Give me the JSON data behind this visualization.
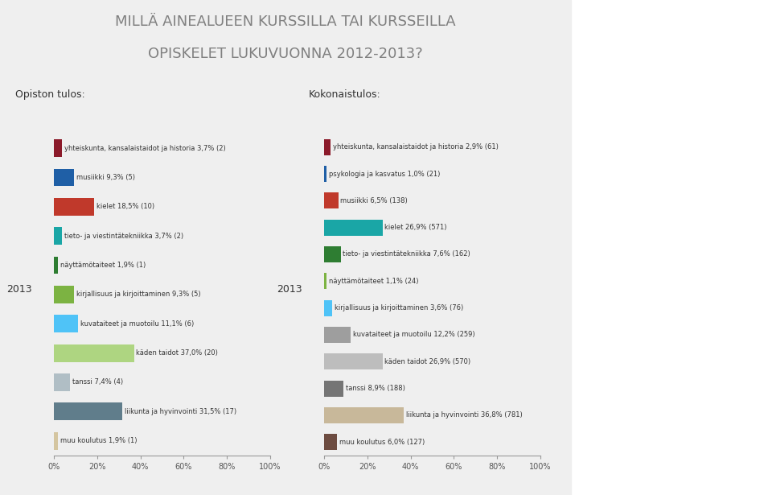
{
  "title_line1": "MILLÄ AINEALUEEN KURSSILLA TAI KURSSEILLA",
  "title_line2": "OPISKELET LUKUVUONNA 2012-2013?",
  "left_subtitle": "Opiston tulos:",
  "right_subtitle": "Kokonaistulos:",
  "year_label": "2013",
  "left_bars": [
    {
      "label": "yhteiskunta, kansalaistaidot ja historia 3,7% (2)",
      "value": 3.7,
      "color": "#8B1A2A"
    },
    {
      "label": "musiikki 9,3% (5)",
      "value": 9.3,
      "color": "#1F5FA6"
    },
    {
      "label": "kielet 18,5% (10)",
      "value": 18.5,
      "color": "#C0392B"
    },
    {
      "label": "tieto- ja viestintätekniikka 3,7% (2)",
      "value": 3.7,
      "color": "#1AA6A6"
    },
    {
      "label": "näyttämötaiteet 1,9% (1)",
      "value": 1.9,
      "color": "#2E7D32"
    },
    {
      "label": "kirjallisuus ja kirjoittaminen 9,3% (5)",
      "value": 9.3,
      "color": "#7CB342"
    },
    {
      "label": "kuvataiteet ja muotoilu 11,1% (6)",
      "value": 11.1,
      "color": "#4FC3F7"
    },
    {
      "label": "käden taidot 37,0% (20)",
      "value": 37.0,
      "color": "#AED581"
    },
    {
      "label": "tanssi 7,4% (4)",
      "value": 7.4,
      "color": "#B0BEC5"
    },
    {
      "label": "liikunta ja hyvinvointi 31,5% (17)",
      "value": 31.5,
      "color": "#607D8B"
    },
    {
      "label": "muu koulutus 1,9% (1)",
      "value": 1.9,
      "color": "#D4C5A0"
    }
  ],
  "right_bars": [
    {
      "label": "yhteiskunta, kansalaistaidot ja historia 2,9% (61)",
      "value": 2.9,
      "color": "#8B1A2A"
    },
    {
      "label": "psykologia ja kasvatus 1,0% (21)",
      "value": 1.0,
      "color": "#1F5FA6"
    },
    {
      "label": "musiikki 6,5% (138)",
      "value": 6.5,
      "color": "#C0392B"
    },
    {
      "label": "kielet 26,9% (571)",
      "value": 26.9,
      "color": "#1AA6A6"
    },
    {
      "label": "tieto- ja viestintätekniikka 7,6% (162)",
      "value": 7.6,
      "color": "#2E7D32"
    },
    {
      "label": "näyttämötaiteet 1,1% (24)",
      "value": 1.1,
      "color": "#7CB342"
    },
    {
      "label": "kirjallisuus ja kirjoittaminen 3,6% (76)",
      "value": 3.6,
      "color": "#4FC3F7"
    },
    {
      "label": "kuvataiteet ja muotoilu 12,2% (259)",
      "value": 12.2,
      "color": "#9E9E9E"
    },
    {
      "label": "käden taidot 26,9% (570)",
      "value": 26.9,
      "color": "#BDBDBD"
    },
    {
      "label": "tanssi 8,9% (188)",
      "value": 8.9,
      "color": "#757575"
    },
    {
      "label": "liikunta ja hyvinvointi 36,8% (781)",
      "value": 36.8,
      "color": "#C8B89A"
    },
    {
      "label": "muu koulutus 6,0% (127)",
      "value": 6.0,
      "color": "#6D4C41"
    }
  ],
  "bg_color": "#F0F0F0",
  "title_color": "#7F7F7F",
  "subtitle_color": "#333333",
  "text_color": "#333333"
}
